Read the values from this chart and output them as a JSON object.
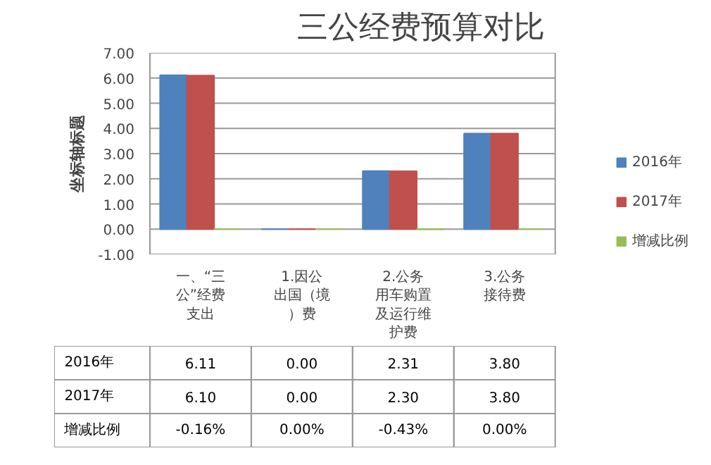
{
  "chart_data": {
    "type": "bar",
    "title": "三公经费预算对比",
    "ylabel": "坐标轴标题",
    "categories": [
      "一、“三公”经费支出",
      "1.因公出国（境）费",
      "2.公务用车购置及运行维护费",
      "3.公务接待费"
    ],
    "series": [
      {
        "name": "2016年",
        "color": "#4f81bd",
        "values": [
          6.11,
          0.0,
          2.31,
          3.8
        ],
        "value_labels": [
          "6.11",
          "0.00",
          "2.31",
          "3.80"
        ]
      },
      {
        "name": "2017年",
        "color": "#c0504d",
        "values": [
          6.1,
          0.0,
          2.3,
          3.8
        ],
        "value_labels": [
          "6.10",
          "0.00",
          "2.30",
          "3.80"
        ]
      },
      {
        "name": "增减比例",
        "color": "#9bbb59",
        "values": [
          -0.0016,
          0.0,
          -0.0043,
          0.0
        ],
        "value_labels": [
          "-0.16%",
          "0.00%",
          "-0.43%",
          "0.00%"
        ]
      }
    ],
    "ylim": [
      -1,
      7
    ],
    "yticks": [
      {
        "value": -1,
        "label": "-1.00"
      },
      {
        "value": 0,
        "label": "0.00"
      },
      {
        "value": 1,
        "label": "1.00"
      },
      {
        "value": 2,
        "label": "2.00"
      },
      {
        "value": 3,
        "label": "3.00"
      },
      {
        "value": 4,
        "label": "4.00"
      },
      {
        "value": 5,
        "label": "5.00"
      },
      {
        "value": 6,
        "label": "6.00"
      },
      {
        "value": 7,
        "label": "7.00"
      }
    ],
    "grid": "y",
    "legend": "right"
  }
}
